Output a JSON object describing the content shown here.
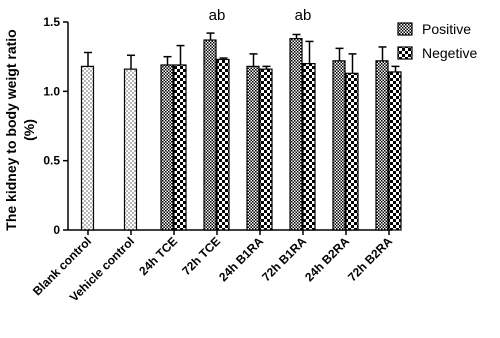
{
  "chart_data": {
    "type": "bar",
    "y_label": [
      "The kidney to body weigt ratio",
      "(%)"
    ],
    "categories": [
      "Blank control",
      "Vehicle control",
      "24h TCE",
      "72h TCE",
      "24h B1RA",
      "72h B1RA",
      "24h B2RA",
      "72h B2RA"
    ],
    "series": [
      {
        "color": "#000000",
        "values": [
          1.18,
          1.16,
          null,
          null,
          null,
          null,
          null,
          null
        ],
        "errors": [
          0.1,
          0.1,
          null,
          null,
          null,
          null,
          null,
          null
        ]
      },
      {
        "name": "Positive",
        "color": "#000000",
        "values": [
          null,
          null,
          1.19,
          1.37,
          1.18,
          1.38,
          1.22,
          1.22
        ],
        "errors": [
          null,
          null,
          0.06,
          0.05,
          0.09,
          0.03,
          0.09,
          0.1
        ]
      },
      {
        "name": "Negetive",
        "color": "#000000",
        "values": [
          null,
          null,
          1.19,
          1.23,
          1.16,
          1.2,
          1.13,
          1.14
        ],
        "errors": [
          null,
          null,
          0.14,
          0.01,
          0.02,
          0.16,
          0.14,
          0.04
        ]
      }
    ],
    "annotations": [
      {
        "text": "ab",
        "category": 3
      },
      {
        "text": "ab",
        "category": 5
      }
    ],
    "ylim": [
      0,
      1.5
    ],
    "yticks": [
      0,
      0.5,
      {
        "value": 1,
        "label": "1.0"
      },
      1.5
    ],
    "legend": "top-right"
  }
}
